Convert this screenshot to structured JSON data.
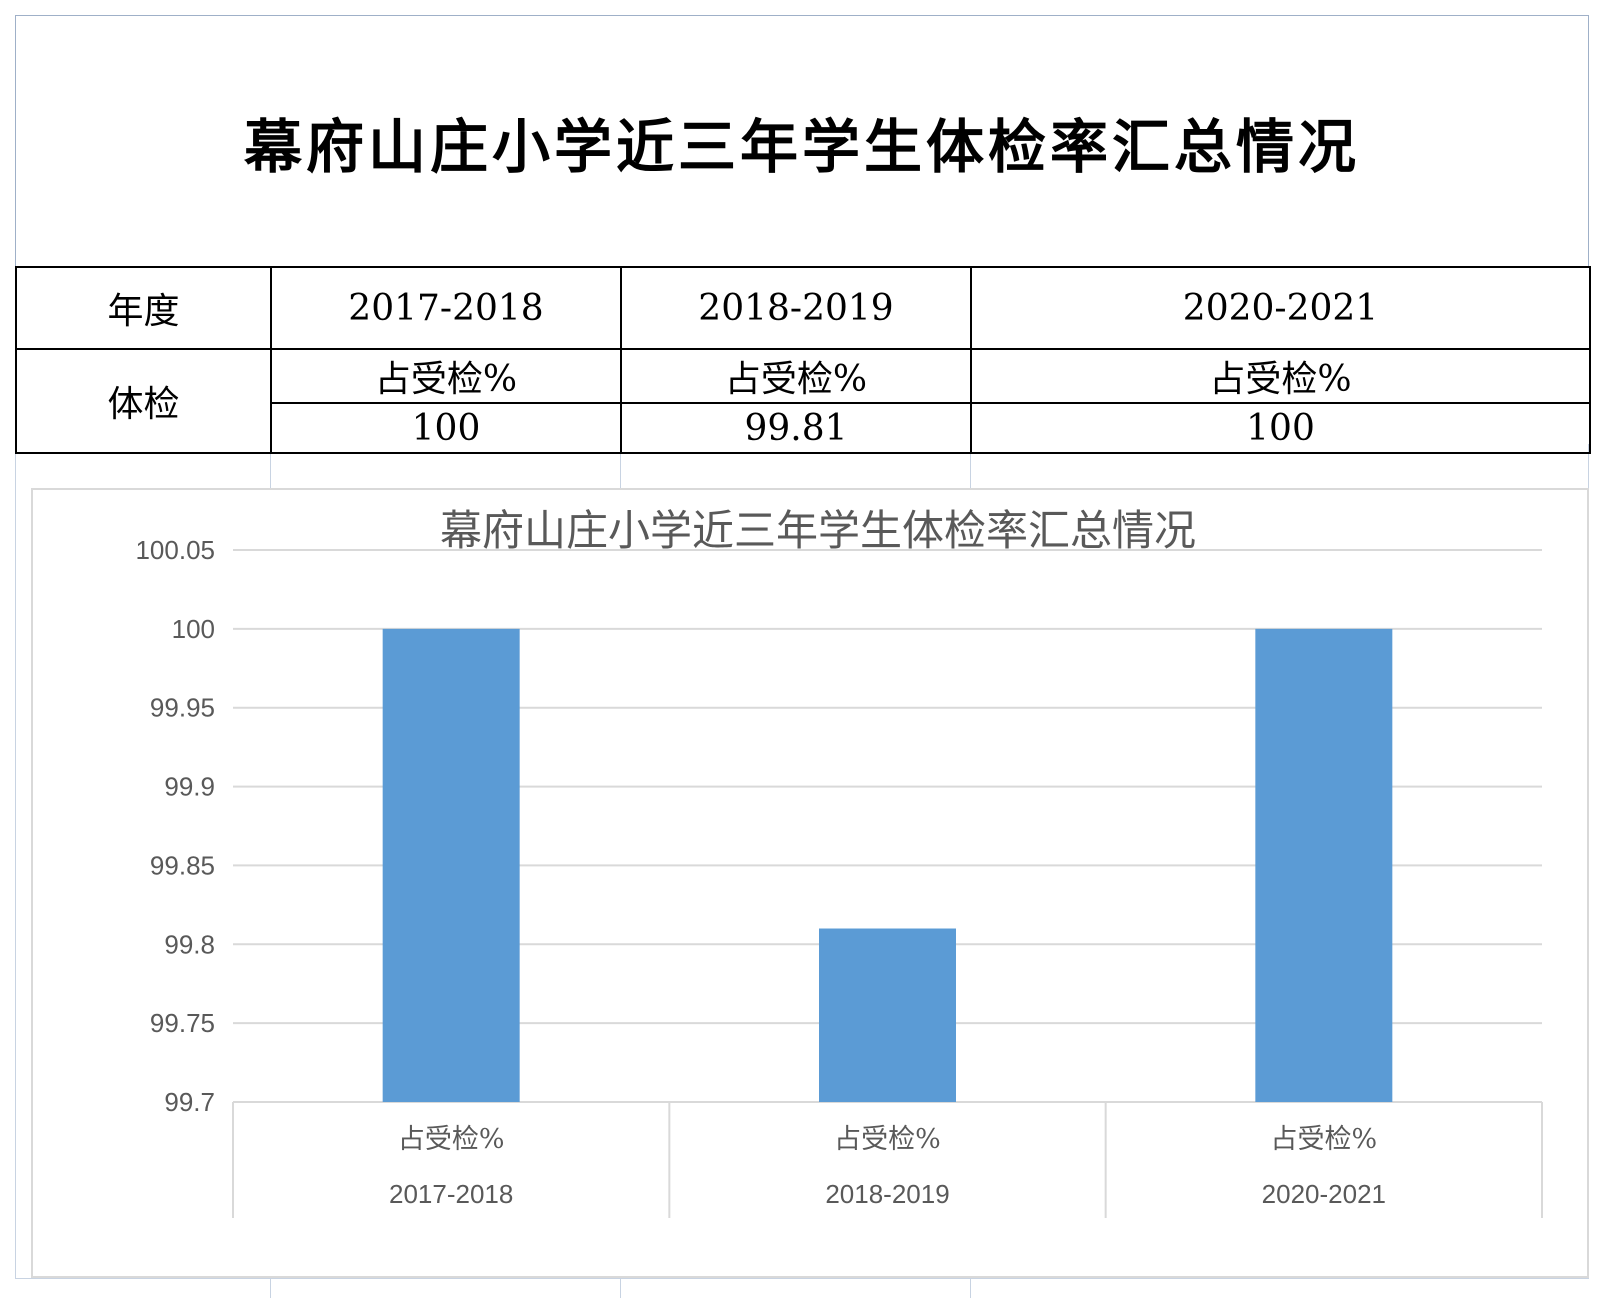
{
  "document": {
    "title": "幕府山庄小学近三年学生体检率汇总情况"
  },
  "table": {
    "row_header_year": "年度",
    "row_header_exam": "体检",
    "years": [
      "2017-2018",
      "2018-2019",
      "2020-2021"
    ],
    "metric_label": "占受检%",
    "values": [
      "100",
      "99.81",
      "100"
    ]
  },
  "chart_data": {
    "type": "bar",
    "title": "幕府山庄小学近三年学生体检率汇总情况",
    "categories": [
      "2017-2018",
      "2018-2019",
      "2020-2021"
    ],
    "sub_categories": [
      "占受检%",
      "占受检%",
      "占受检%"
    ],
    "values": [
      100,
      99.81,
      100
    ],
    "ylim": [
      99.7,
      100.05
    ],
    "yticks": [
      99.7,
      99.75,
      99.8,
      99.85,
      99.9,
      99.95,
      100,
      100.05
    ],
    "ytick_labels": [
      "99.7",
      "99.75",
      "99.8",
      "99.85",
      "99.9",
      "99.95",
      "100",
      "100.05"
    ],
    "grid": true,
    "legend": "none",
    "bar_color": "#5b9bd5",
    "grid_color": "#d9d9d9",
    "title_color": "#595959",
    "label_color": "#595959"
  }
}
